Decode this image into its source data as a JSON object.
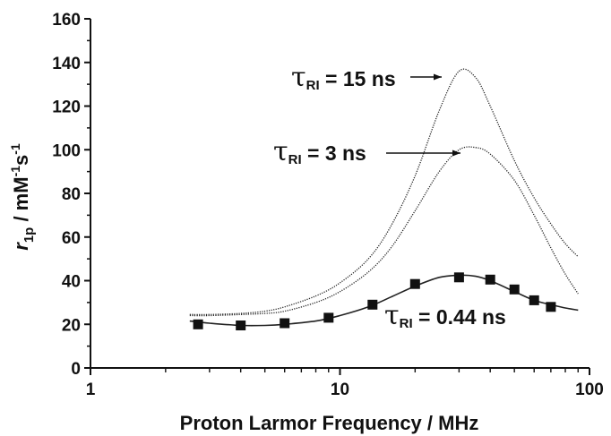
{
  "chart_data": {
    "type": "line",
    "title": "",
    "xlabel": "Proton Larmor Frequency / MHz",
    "ylabel": {
      "italic": "r",
      "sub": "1p",
      "unit_prefix": " / mM",
      "unit_sup1": "-1",
      "unit_mid": "s",
      "unit_sup2": "-1"
    },
    "xscale": "log",
    "xlim": [
      1,
      100
    ],
    "ylim": [
      0,
      160
    ],
    "xticks": [
      1,
      10,
      100
    ],
    "xtick_labels": [
      "1",
      "10",
      "100"
    ],
    "yticks": [
      0,
      20,
      40,
      60,
      80,
      100,
      120,
      140,
      160
    ],
    "ytick_labels": [
      "0",
      "20",
      "40",
      "60",
      "80",
      "100",
      "120",
      "140",
      "160"
    ],
    "grid": false,
    "series": [
      {
        "name": "τRI = 15 ns",
        "label_parts": {
          "tau": "τ",
          "sub": "RI",
          "text": " = 15 ns"
        },
        "style": "dotted-line",
        "x": [
          2.5,
          3,
          4,
          5,
          6,
          8,
          10,
          13,
          16,
          20,
          25,
          30,
          35,
          40,
          50,
          60,
          70,
          80,
          90
        ],
        "y": [
          24.5,
          24.5,
          25,
          26,
          28,
          33,
          39,
          50,
          65,
          88,
          118,
          136,
          133,
          120,
          95,
          78,
          66,
          57,
          51
        ]
      },
      {
        "name": "τRI = 3 ns",
        "label_parts": {
          "tau": "τ",
          "sub": "RI",
          "text": " = 3 ns"
        },
        "style": "dotted-line",
        "x": [
          2.5,
          3,
          4,
          5,
          6,
          8,
          10,
          13,
          16,
          20,
          25,
          30,
          35,
          40,
          50,
          60,
          70,
          80,
          90
        ],
        "y": [
          24,
          24,
          24.5,
          25,
          26,
          30,
          35,
          44,
          55,
          72,
          90,
          100,
          101,
          98,
          86,
          70,
          55,
          43,
          34
        ]
      },
      {
        "name": "τRI = 0.44 ns",
        "label_parts": {
          "tau": "τ",
          "sub": "RI",
          "text": " = 0.44 ns"
        },
        "style": "solid-line",
        "x": [
          2.5,
          3,
          4,
          5,
          6,
          8,
          10,
          13,
          16,
          20,
          25,
          30,
          35,
          40,
          50,
          60,
          70,
          80,
          90
        ],
        "y": [
          21.5,
          20.5,
          19.5,
          19.5,
          20,
          21.5,
          24,
          28,
          32.5,
          37.5,
          41.5,
          42.5,
          42,
          40,
          35,
          31,
          29,
          27.5,
          26.5
        ]
      },
      {
        "name": "τRI = 0.44 ns data",
        "style": "markers",
        "marker": "square",
        "x": [
          2.7,
          4,
          6,
          9,
          13.5,
          20,
          30,
          40,
          50,
          60,
          70
        ],
        "y": [
          20,
          19.5,
          20.5,
          23,
          29,
          38.5,
          41.5,
          40.5,
          36,
          31,
          28
        ]
      }
    ]
  }
}
